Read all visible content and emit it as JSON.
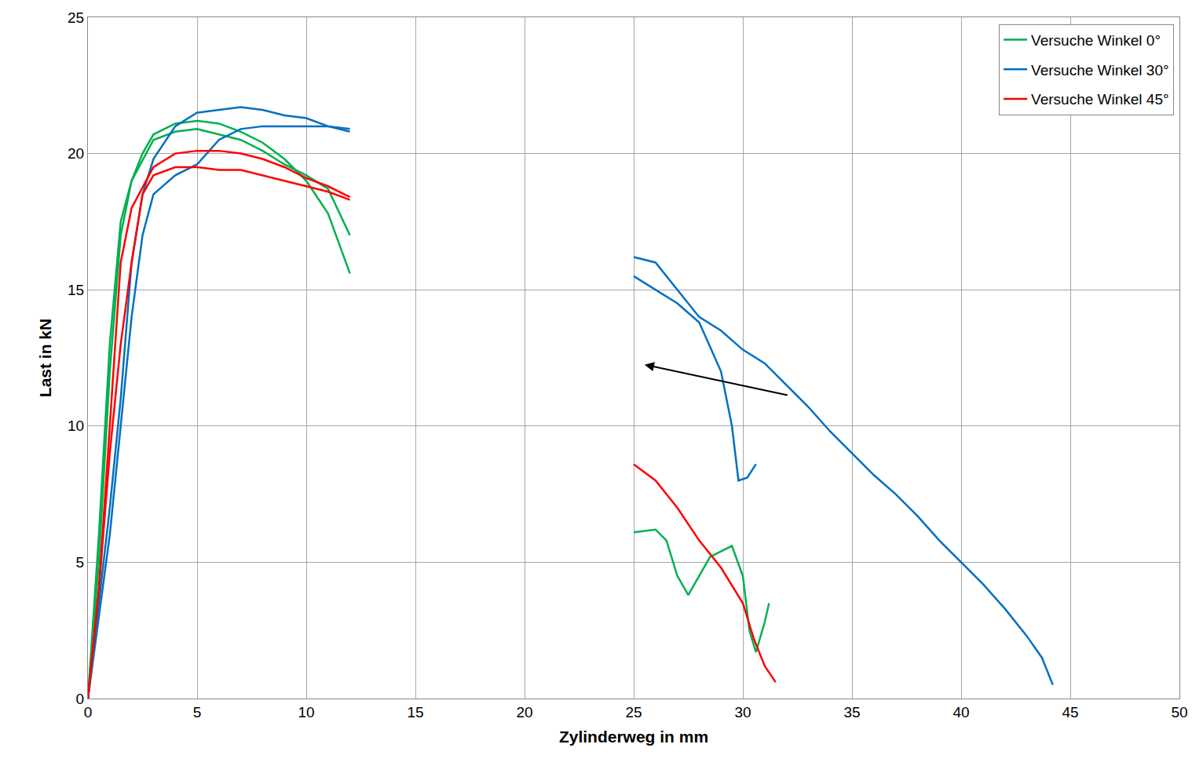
{
  "chart_data": {
    "type": "line",
    "x_label": "Zylinderweg in mm",
    "y_label": "Last in kN",
    "xlim": [
      0,
      50
    ],
    "xticks": [
      0,
      5,
      10,
      15,
      20,
      25,
      30,
      35,
      40,
      45,
      50
    ],
    "ylim": [
      0,
      25
    ],
    "yticks": [
      0,
      5,
      10,
      15,
      20,
      25
    ],
    "grid": true,
    "legend": "top right",
    "series": [
      {
        "name": "Versuche Winkel 0°",
        "color": "#00b050",
        "x": [
          0,
          0.5,
          1,
          1.5,
          2,
          2.5,
          3,
          4,
          5,
          6,
          7,
          8,
          9,
          10,
          11,
          12,
          null,
          25,
          26,
          26.5,
          27,
          27.5,
          28,
          28.5,
          29.5,
          30,
          30.3,
          30.6,
          31,
          31.2
        ],
        "values": [
          0,
          5,
          12,
          17,
          19,
          20,
          20.7,
          21.1,
          21.2,
          21.1,
          20.8,
          20.4,
          19.8,
          19,
          17.8,
          15.6,
          null,
          6.1,
          6.2,
          5.8,
          4.5,
          3.8,
          4.5,
          5.2,
          5.6,
          4.5,
          2.5,
          1.7,
          2.8,
          3.5
        ]
      },
      {
        "name": "Versuche Winkel 0°",
        "color": "#00b050",
        "x": [
          0,
          0.5,
          1,
          1.5,
          2,
          3,
          4,
          5,
          6,
          7,
          8,
          9,
          10,
          11,
          12
        ],
        "values": [
          0,
          6,
          13,
          17.5,
          19,
          20.5,
          20.8,
          20.9,
          20.7,
          20.5,
          20.1,
          19.6,
          19.2,
          18.7,
          17
        ]
      },
      {
        "name": "Versuche Winkel 30°",
        "color": "#0070c0",
        "x": [
          0,
          1,
          1.5,
          2,
          2.5,
          3,
          4,
          5,
          6,
          7,
          8,
          9,
          10,
          11,
          12,
          null,
          25,
          26,
          27,
          28,
          29,
          29.5,
          29.8,
          30.2,
          30.6
        ],
        "values": [
          0,
          6,
          10,
          14,
          17,
          18.5,
          19.2,
          19.6,
          20.5,
          20.9,
          21,
          21,
          21,
          21,
          20.9,
          null,
          15.5,
          15,
          14.5,
          13.8,
          12,
          10,
          8,
          8.1,
          8.6
        ]
      },
      {
        "name": "Versuche Winkel 30°",
        "color": "#0070c0",
        "x": [
          0,
          1,
          1.5,
          2,
          2.5,
          3,
          4,
          5,
          6,
          7,
          8,
          9,
          10,
          11,
          12,
          null,
          25,
          26,
          27,
          28,
          29,
          30,
          31,
          32,
          33,
          34,
          35,
          36,
          37,
          38,
          39,
          40,
          41,
          42,
          43,
          43.7,
          44.2
        ],
        "values": [
          0,
          7,
          11,
          16,
          18.5,
          19.8,
          21,
          21.5,
          21.6,
          21.7,
          21.6,
          21.4,
          21.3,
          21,
          20.8,
          null,
          16.2,
          16,
          15,
          14,
          13.5,
          12.8,
          12.3,
          11.5,
          10.7,
          9.8,
          9,
          8.2,
          7.5,
          6.7,
          5.8,
          5,
          4.2,
          3.3,
          2.3,
          1.5,
          0.5
        ]
      },
      {
        "name": "Versuche Winkel 45°",
        "color": "#ff0000",
        "x": [
          0,
          0.5,
          1,
          1.5,
          2,
          3,
          4,
          5,
          6,
          7,
          8,
          9,
          10,
          11,
          12,
          null,
          25,
          26,
          27,
          28,
          29,
          30,
          30.5,
          31,
          31.5
        ],
        "values": [
          0,
          4,
          10,
          16,
          18,
          19.5,
          20,
          20.1,
          20.1,
          20,
          19.8,
          19.5,
          19.1,
          18.8,
          18.4,
          null,
          8.6,
          8,
          7,
          5.8,
          4.8,
          3.5,
          2.2,
          1.2,
          0.6
        ]
      },
      {
        "name": "Versuche Winkel 45°",
        "color": "#ff0000",
        "x": [
          0,
          0.5,
          1,
          1.5,
          2,
          2.5,
          3,
          4,
          5,
          6,
          7,
          8,
          9,
          10,
          11,
          12
        ],
        "values": [
          0,
          4,
          9,
          13,
          16,
          18.5,
          19.2,
          19.5,
          19.5,
          19.4,
          19.4,
          19.2,
          19,
          18.8,
          18.6,
          18.3
        ]
      }
    ]
  }
}
